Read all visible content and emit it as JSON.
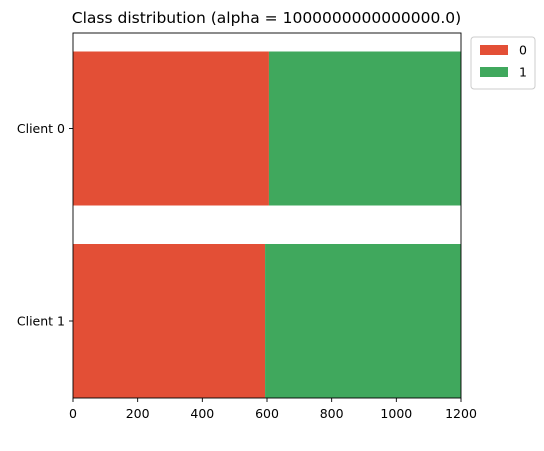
{
  "chart_data": {
    "type": "bar",
    "orientation": "horizontal",
    "stacked": true,
    "title": "Class distribution (alpha = 1000000000000000.0)",
    "xlabel": "",
    "ylabel": "",
    "categories": [
      "Client 0",
      "Client 1"
    ],
    "series": [
      {
        "name": "0",
        "color": "#e34f36",
        "values": [
          606,
          594
        ]
      },
      {
        "name": "1",
        "color": "#40a85d",
        "values": [
          594,
          606
        ]
      }
    ],
    "xlim": [
      0,
      1200
    ],
    "xticks": [
      0,
      200,
      400,
      600,
      800,
      1000,
      1200
    ],
    "grid": false,
    "legend_position": "outside top-right"
  }
}
